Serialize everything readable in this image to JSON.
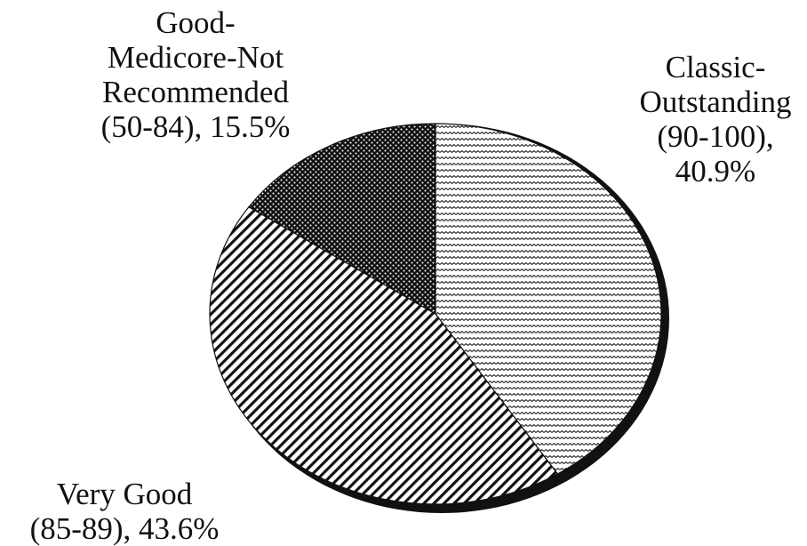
{
  "chart_data": {
    "type": "pie",
    "title": "",
    "slices": [
      {
        "category": "Classic-Outstanding (90-100)",
        "value": 40.9,
        "label_lines": [
          "Classic-",
          "Outstanding",
          "(90-100),",
          "40.9%"
        ],
        "fill": "wavy-hatch"
      },
      {
        "category": "Very Good (85-89)",
        "value": 43.6,
        "label_lines": [
          "Very Good",
          "(85-89), 43.6%"
        ],
        "fill": "diagonal-hatch"
      },
      {
        "category": "Good-Medicore-Not Recommended (50-84)",
        "value": 15.5,
        "label_lines": [
          "Good-",
          "Medicore-Not",
          "Recommended",
          "(50-84), 15.5%"
        ],
        "fill": "dotted-dark"
      }
    ],
    "start_angle": "12 o'clock",
    "direction": "clockwise",
    "legend": "none",
    "colors": {
      "ink": "#111111",
      "background": "#ffffff"
    }
  }
}
